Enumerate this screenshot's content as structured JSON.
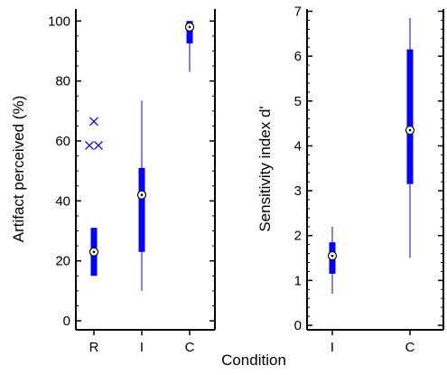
{
  "chart_data": [
    {
      "type": "boxplot",
      "xlabel": "",
      "ylabel": "Artifact perceived (%)",
      "ylim": [
        -3,
        104
      ],
      "yticks": [
        0,
        20,
        40,
        60,
        80,
        100
      ],
      "categories": [
        "R",
        "I",
        "C"
      ],
      "boxes": [
        {
          "category": "R",
          "whisker_low": 15,
          "q1": 15,
          "median": 23,
          "q3": 31,
          "whisker_high": 31,
          "outliers": [
            58.5,
            58.5,
            66.5
          ]
        },
        {
          "category": "I",
          "whisker_low": 10,
          "q1": 23,
          "median": 42,
          "q3": 51,
          "whisker_high": 73.5,
          "outliers": []
        },
        {
          "category": "C",
          "whisker_low": 83,
          "q1": 92.5,
          "median": 98,
          "q3": 100,
          "whisker_high": 100,
          "outliers": []
        }
      ],
      "color": "#0000ff"
    },
    {
      "type": "boxplot",
      "xlabel": "",
      "ylabel": "Sensitivity index d'",
      "ylim": [
        -0.1,
        7.05
      ],
      "yticks": [
        0,
        1,
        2,
        3,
        4,
        5,
        6,
        7
      ],
      "categories": [
        "I",
        "C"
      ],
      "boxes": [
        {
          "category": "I",
          "whisker_low": 0.7,
          "q1": 1.15,
          "median": 1.55,
          "q3": 1.85,
          "whisker_high": 2.2,
          "outliers": []
        },
        {
          "category": "C",
          "whisker_low": 1.5,
          "q1": 3.15,
          "median": 4.35,
          "q3": 6.15,
          "whisker_high": 6.85,
          "outliers": []
        }
      ],
      "color": "#0000ff"
    }
  ],
  "shared_xlabel": "Condition"
}
